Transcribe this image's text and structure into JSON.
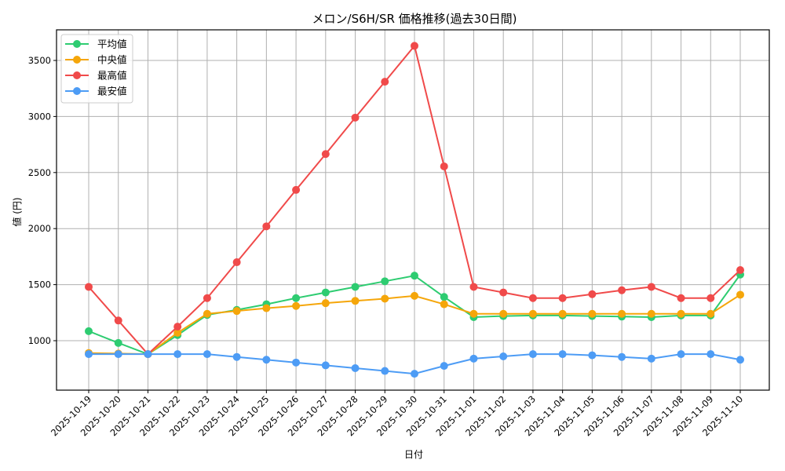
{
  "chart_data": {
    "type": "line",
    "title": "メロン/S6H/SR 価格推移(過去30日間)",
    "xlabel": "日付",
    "ylabel": "値 (円)",
    "ylim": [
      650,
      3780
    ],
    "yticks": [
      1000,
      1500,
      2000,
      2500,
      3000,
      3500
    ],
    "grid": true,
    "legend_position": "upper left",
    "x": [
      "2025-10-19",
      "2025-10-20",
      "2025-10-21",
      "2025-10-22",
      "2025-10-23",
      "2025-10-24",
      "2025-10-25",
      "2025-10-26",
      "2025-10-27",
      "2025-10-28",
      "2025-10-29",
      "2025-10-30",
      "2025-10-31",
      "2025-11-01",
      "2025-11-02",
      "2025-11-03",
      "2025-11-04",
      "2025-11-05",
      "2025-11-06",
      "2025-11-07",
      "2025-11-08",
      "2025-11-09",
      "2025-11-10"
    ],
    "series": [
      {
        "name": "平均値",
        "color": "#2ecc71",
        "values": [
          1085,
          980,
          880,
          1050,
          1230,
          1275,
          1325,
          1380,
          1430,
          1480,
          1530,
          1580,
          1390,
          1210,
          1220,
          1225,
          1225,
          1220,
          1215,
          1210,
          1225,
          1225,
          1590
        ]
      },
      {
        "name": "中央値",
        "color": "#f5a60a",
        "values": [
          890,
          885,
          880,
          1070,
          1240,
          1265,
          1290,
          1310,
          1335,
          1355,
          1375,
          1400,
          1325,
          1240,
          1240,
          1240,
          1240,
          1240,
          1240,
          1240,
          1240,
          1240,
          1410
        ]
      },
      {
        "name": "最高値",
        "color": "#f04a4a",
        "values": [
          1480,
          1180,
          880,
          1125,
          1380,
          1700,
          2020,
          2345,
          2665,
          2990,
          3310,
          3630,
          2555,
          1480,
          1430,
          1380,
          1380,
          1415,
          1450,
          1480,
          1380,
          1380,
          1630
        ]
      },
      {
        "name": "最安値",
        "color": "#4d9cf5",
        "values": [
          880,
          880,
          880,
          880,
          880,
          855,
          830,
          805,
          780,
          755,
          730,
          705,
          775,
          840,
          860,
          880,
          880,
          870,
          855,
          840,
          880,
          880,
          830
        ]
      }
    ]
  }
}
